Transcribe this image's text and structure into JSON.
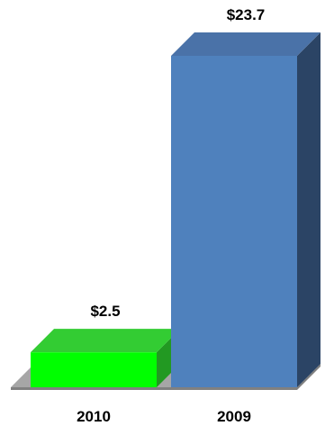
{
  "chart_data": {
    "type": "bar",
    "title": "",
    "xlabel": "",
    "ylabel": "",
    "categories": [
      "2010",
      "2009"
    ],
    "values": [
      2.5,
      23.7
    ],
    "value_labels": [
      "$2.5",
      "$23.7"
    ],
    "ylim": [
      0,
      23.7
    ],
    "grid": false,
    "legend": "none",
    "three_d": true
  },
  "colors": {
    "bars": [
      {
        "front": "#00ff00",
        "top": "#33cc33",
        "side": "#229922"
      },
      {
        "front": "#4f81bd",
        "top": "#4a72a8",
        "side": "#2b4465"
      }
    ],
    "floor_top": "#a6a6a6",
    "floor_front": "#808080",
    "text": "#000000"
  }
}
